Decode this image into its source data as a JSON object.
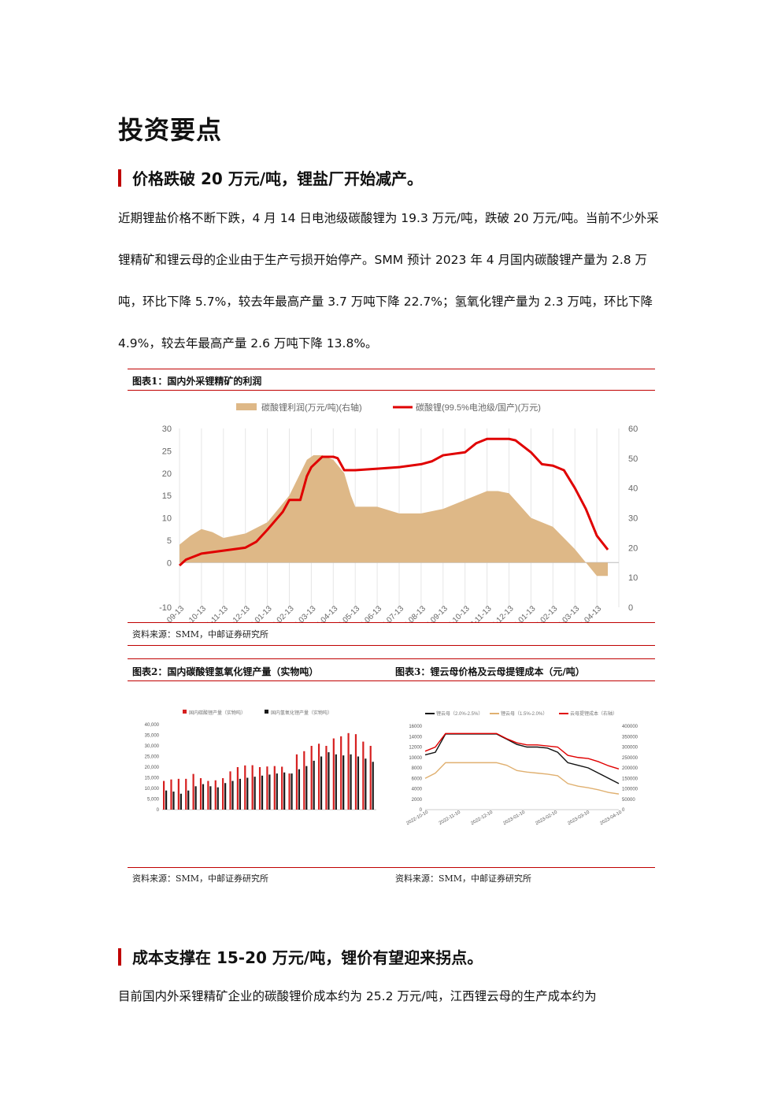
{
  "page_title": "投资要点",
  "section1": {
    "heading": "价格跌破 20 万元/吨，锂盐厂开始减产。",
    "paragraph": "近期锂盐价格不断下跌，4 月 14 日电池级碳酸锂为 19.3 万元/吨，跌破 20 万元/吨。当前不少外采锂精矿和锂云母的企业由于生产亏损开始停产。SMM 预计 2023 年 4 月国内碳酸锂产量为 2.8 万吨，环比下降 5.7%，较去年最高产量 3.7 万吨下降 22.7%；氢氧化锂产量为 2.3 万吨，环比下降 4.9%，较去年最高产量 2.6 万吨下降 13.8%。"
  },
  "figure1": {
    "title": "图表1：国内外采锂精矿的利润",
    "source": "资料来源：SMM，中邮证券研究所"
  },
  "figure2": {
    "title": "图表2：国内碳酸锂氢氧化锂产量（实物吨）",
    "source": "资料来源：SMM，中邮证券研究所"
  },
  "figure3": {
    "title": "图表3：锂云母价格及云母提锂成本（元/吨）",
    "source": "资料来源：SMM，中邮证券研究所"
  },
  "section2": {
    "heading": "成本支撑在 15-20 万元/吨，锂价有望迎来拐点。",
    "paragraph": "目前国内外采锂精矿企业的碳酸锂价成本约为 25.2 万元/吨，江西锂云母的生产成本约为"
  },
  "chart_data": [
    {
      "type": "area+line",
      "legend": [
        "碳酸锂利润(万元/吨)(右轴)",
        "碳酸锂(99.5%电池级/国产)(万元)"
      ],
      "legend_position": "top",
      "categories": [
        "2021-09-13",
        "2021-10-13",
        "2021-11-13",
        "2021-12-13",
        "2022-01-13",
        "2022-02-13",
        "2022-03-13",
        "2022-04-13",
        "2022-05-13",
        "2022-06-13",
        "2022-07-13",
        "2022-08-13",
        "2022-09-13",
        "2022-10-13",
        "2022-11-13",
        "2022-12-13",
        "2023-01-13",
        "2023-02-13",
        "2023-03-13",
        "2023-04-13"
      ],
      "left_axis": {
        "ticks": [
          "30",
          "25",
          "20",
          "15",
          "10",
          "5",
          "0",
          "-10"
        ],
        "min": -10,
        "max": 30
      },
      "right_axis": {
        "ticks": [
          "60",
          "50",
          "40",
          "30",
          "20",
          "10",
          "0"
        ],
        "min": 0,
        "max": 60
      },
      "series": [
        {
          "name": "碳酸锂利润(万元/吨)(右轴)",
          "axis": "left",
          "color": "#deb887",
          "x": [
            0,
            0.5,
            1,
            1.5,
            2,
            3,
            4,
            5,
            5.5,
            5.8,
            6.1,
            6.5,
            7,
            7.5,
            7.8,
            8,
            9,
            10,
            11,
            12,
            13,
            14,
            14.5,
            15,
            16,
            17,
            18,
            18.5,
            19,
            19.5
          ],
          "values": [
            4,
            6,
            7.5,
            6.8,
            5.5,
            6.5,
            9,
            15,
            20,
            23,
            24,
            24,
            23,
            20,
            15,
            12.5,
            12.5,
            11,
            11,
            12,
            14,
            16,
            16,
            15.5,
            10,
            8,
            3,
            0,
            -3,
            -3
          ]
        },
        {
          "name": "碳酸锂(99.5%电池级/国产)(万元)",
          "axis": "right",
          "color": "#e00000",
          "x": [
            0,
            0.3,
            1,
            2,
            3,
            3.5,
            4,
            4.7,
            5,
            5.5,
            5.8,
            6,
            6.5,
            7,
            7.2,
            7.5,
            8,
            9,
            10,
            11,
            11.5,
            12,
            13,
            13.5,
            14,
            15,
            15.3,
            16,
            16.5,
            17,
            17.5,
            18,
            18.5,
            19,
            19.5
          ],
          "values": [
            14,
            16,
            18,
            19,
            20,
            22,
            26,
            32,
            36,
            36,
            44,
            47,
            50.5,
            50.5,
            50,
            46,
            46,
            46.5,
            47,
            48,
            49,
            51,
            52,
            55,
            56.5,
            56.5,
            56,
            52,
            48,
            47.5,
            46,
            40,
            33,
            24,
            19.3
          ]
        }
      ]
    },
    {
      "type": "bar",
      "legend": [
        "国内碳酸锂产量（实物吨）",
        "国内氢氧化锂产量（实物吨）"
      ],
      "y_ticks": [
        "40,000",
        "35,000",
        "30,000",
        "25,000",
        "20,000",
        "15,000",
        "10,000",
        "5,000",
        "0"
      ],
      "ylim": [
        0,
        40000
      ],
      "series": [
        {
          "name": "国内碳酸锂产量（实物吨）",
          "color": "#d62020",
          "values": [
            13500,
            14200,
            14500,
            14500,
            16800,
            14800,
            13500,
            13800,
            14800,
            18000,
            20000,
            20800,
            20900,
            20000,
            20300,
            20500,
            20200,
            17000,
            26000,
            27500,
            30000,
            31000,
            30000,
            33500,
            34500,
            36000,
            35500,
            32000,
            30000
          ]
        },
        {
          "name": "国内氢氧化锂产量（实物吨）",
          "color": "#1a1a1a",
          "values": [
            9000,
            8500,
            7500,
            9000,
            11000,
            12000,
            11000,
            10500,
            12500,
            13500,
            14500,
            15000,
            15500,
            16000,
            16500,
            17000,
            17500,
            17000,
            19000,
            20500,
            23000,
            25000,
            27000,
            26000,
            25500,
            26000,
            25000,
            24000,
            22500
          ]
        }
      ]
    },
    {
      "type": "line",
      "legend": [
        "锂云母（2.0%-2.5%）",
        "锂云母（1.5%-2.0%）",
        "云母提锂成本（右轴）"
      ],
      "left_ticks": [
        "16000",
        "14000",
        "12000",
        "10000",
        "8000",
        "6000",
        "4000",
        "2000",
        "0"
      ],
      "right_ticks": [
        "400000",
        "350000",
        "300000",
        "250000",
        "200000",
        "150000",
        "100000",
        "50000",
        "0"
      ],
      "x_ticks": [
        "2022-10-10",
        "2022-11-10",
        "2022-12-10",
        "2023-01-10",
        "2023-02-10",
        "2023-03-10",
        "2023-04-10"
      ],
      "series": [
        {
          "name": "锂云母（2.0%-2.5%）",
          "color": "#111111",
          "values": [
            10500,
            11000,
            14500,
            14500,
            14500,
            14500,
            14500,
            14500,
            13500,
            12500,
            12000,
            12000,
            11800,
            11000,
            9000,
            8500,
            8000,
            7000,
            6000,
            5000
          ]
        },
        {
          "name": "锂云母（1.5%-2.0%）",
          "color": "#e0b070",
          "values": [
            6000,
            7000,
            9000,
            9000,
            9000,
            9000,
            9000,
            9000,
            8500,
            7500,
            7200,
            7000,
            6800,
            6500,
            5000,
            4500,
            4200,
            3800,
            3300,
            3000
          ]
        },
        {
          "name": "云母提锂成本（右轴）",
          "color": "#e00000",
          "values": [
            280000,
            300000,
            365000,
            365000,
            365000,
            365000,
            365000,
            365000,
            340000,
            320000,
            310000,
            310000,
            305000,
            300000,
            260000,
            250000,
            245000,
            230000,
            210000,
            195000
          ]
        }
      ]
    }
  ]
}
